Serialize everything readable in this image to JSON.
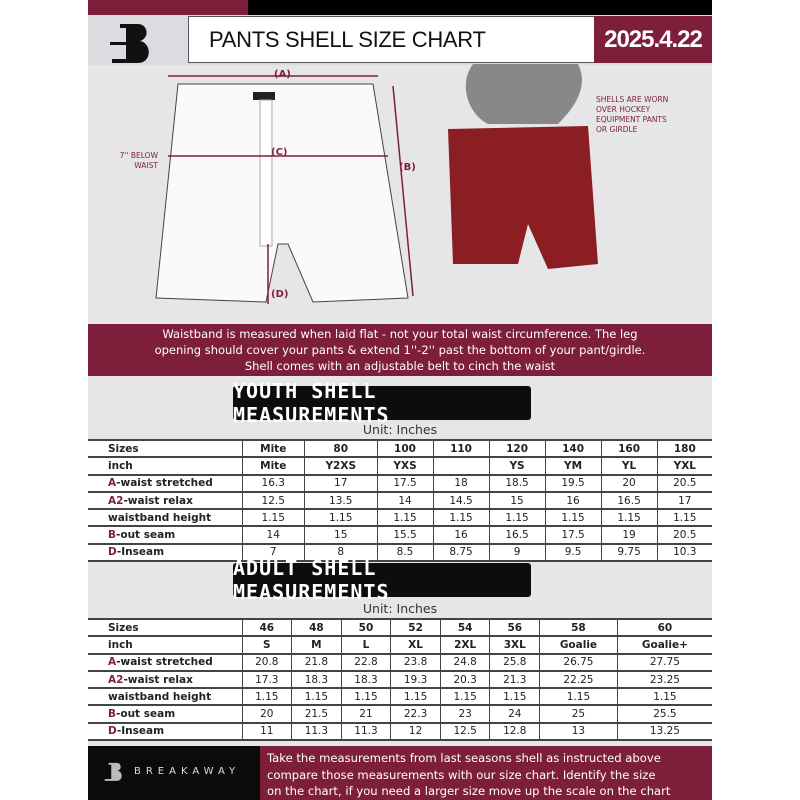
{
  "header": {
    "title": "PANTS SHELL SIZE CHART",
    "date": "2025.4.22"
  },
  "diagram": {
    "label_a": "(A)",
    "label_b": "(B)",
    "label_c": "(C)",
    "label_d": "(D)",
    "below_waist": "7'' BELOW WAIST",
    "shell_note": "SHELLS ARE WORN OVER HOCKEY EQUIPMENT PANTS OR GIRDLE"
  },
  "banner": {
    "lines": [
      "Waistband is measured when laid flat - not your total waist circumference. The leg",
      "opening should cover your pants & extend 1''-2'' past the bottom of your pant/girdle.",
      "Shell comes with an adjustable belt to cinch the waist"
    ]
  },
  "youth": {
    "title": "YOUTH SHELL MEASUREMENTS",
    "unit": "Unit: Inches",
    "rows": [
      {
        "mark": "",
        "label": "Sizes",
        "values": [
          "Mite",
          "80",
          "100",
          "110",
          "120",
          "140",
          "160",
          "180"
        ]
      },
      {
        "mark": "",
        "label": "inch",
        "values": [
          "Mite",
          "Y2XS",
          "YXS",
          "",
          "YS",
          "YM",
          "YL",
          "YXL"
        ]
      },
      {
        "mark": "A",
        "label": "-waist stretched",
        "values": [
          "16.3",
          "17",
          "17.5",
          "18",
          "18.5",
          "19.5",
          "20",
          "20.5"
        ]
      },
      {
        "mark": "A2",
        "label": "-waist relax",
        "values": [
          "12.5",
          "13.5",
          "14",
          "14.5",
          "15",
          "16",
          "16.5",
          "17"
        ]
      },
      {
        "mark": "",
        "label": "waistband height",
        "values": [
          "1.15",
          "1.15",
          "1.15",
          "1.15",
          "1.15",
          "1.15",
          "1.15",
          "1.15"
        ]
      },
      {
        "mark": "B",
        "label": "-out seam",
        "values": [
          "14",
          "15",
          "15.5",
          "16",
          "16.5",
          "17.5",
          "19",
          "20.5"
        ]
      },
      {
        "mark": "D",
        "label": "-Inseam",
        "values": [
          "7",
          "8",
          "8.5",
          "8.75",
          "9",
          "9.5",
          "9.75",
          "10.3"
        ]
      }
    ]
  },
  "adult": {
    "title": "ADULT SHELL MEASUREMENTS",
    "unit": "Unit: Inches",
    "rows": [
      {
        "mark": "",
        "label": "Sizes",
        "values": [
          "46",
          "48",
          "50",
          "52",
          "54",
          "56",
          "58",
          "60"
        ]
      },
      {
        "mark": "",
        "label": "inch",
        "values": [
          "S",
          "M",
          "L",
          "XL",
          "2XL",
          "3XL",
          "Goalie",
          "Goalie+"
        ]
      },
      {
        "mark": "A",
        "label": "-waist stretched",
        "values": [
          "20.8",
          "21.8",
          "22.8",
          "23.8",
          "24.8",
          "25.8",
          "26.75",
          "27.75"
        ]
      },
      {
        "mark": "A2",
        "label": "-waist relax",
        "values": [
          "17.3",
          "18.3",
          "18.3",
          "19.3",
          "20.3",
          "21.3",
          "22.25",
          "23.25"
        ]
      },
      {
        "mark": "",
        "label": "waistband height",
        "values": [
          "1.15",
          "1.15",
          "1.15",
          "1.15",
          "1.15",
          "1.15",
          "1.15",
          "1.15"
        ]
      },
      {
        "mark": "B",
        "label": "-out seam",
        "values": [
          "20",
          "21.5",
          "21",
          "22.3",
          "23",
          "24",
          "25",
          "25.5"
        ]
      },
      {
        "mark": "D",
        "label": "-Inseam",
        "values": [
          "11",
          "11.3",
          "11.3",
          "12",
          "12.5",
          "12.8",
          "13",
          "13.25"
        ]
      }
    ]
  },
  "footer": {
    "brand": "BREAKAWAY",
    "lines": [
      "Take the measurements from last seasons shell as instructed above",
      "compare those measurements  with our size chart. Identify the size",
      "on the chart, if you need a larger size move up the scale on the chart"
    ]
  },
  "colors": {
    "accent": "#7d1f3a",
    "dark": "#0d0d0d",
    "background": "#e6e6e8"
  }
}
